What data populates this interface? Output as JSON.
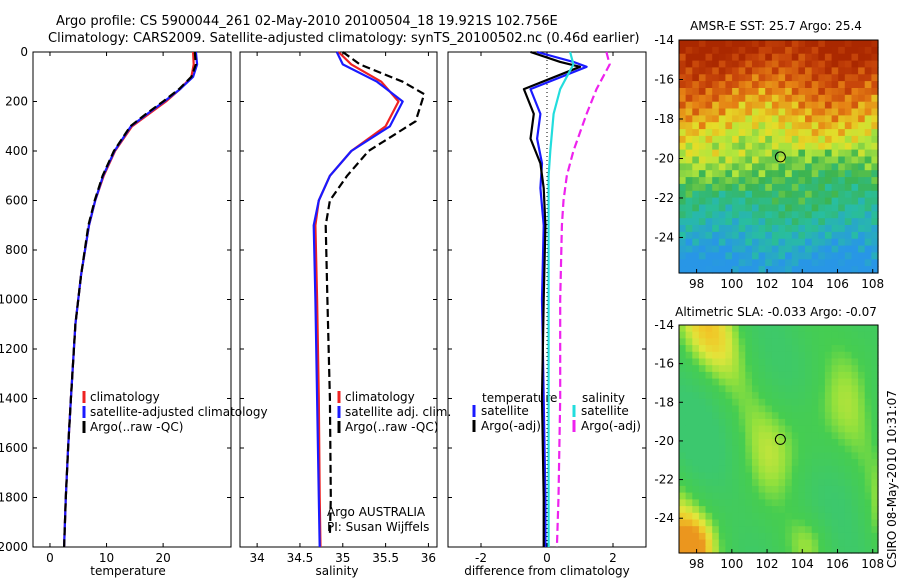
{
  "header": {
    "line1": "Argo profile: CS 5900044_261 02-May-2010 20100504_18 19.921S 102.756E",
    "line2": "Climatology: CARS2009. Satellite-adjusted climatology: synTS_20100502.nc (0.46d earlier)"
  },
  "side_note": "CSIRO 08-May-2010 10:31:07",
  "colors": {
    "red": "#ee2222",
    "blue": "#1a1aff",
    "black": "#000000",
    "cyan": "#22dddd",
    "magenta": "#ee22ee"
  },
  "chart_data": [
    {
      "id": "temperature",
      "type": "line",
      "xlabel": "temperature",
      "ylabel": "",
      "xlim": [
        -3,
        32
      ],
      "ylim": [
        2000,
        0
      ],
      "y_inverted": true,
      "xticks": [
        0,
        10,
        20
      ],
      "yticks": [
        0,
        200,
        400,
        600,
        800,
        1000,
        1200,
        1400,
        1600,
        1800,
        2000
      ],
      "legend": {
        "position": "lower-left",
        "entries": [
          "climatology",
          "satellite-adjusted climatology",
          "Argo(..raw -QC)"
        ]
      },
      "series": [
        {
          "name": "climatology",
          "color": "red",
          "style": "solid",
          "x": [
            25.3,
            25.4,
            25.0,
            23.0,
            20.5,
            17.5,
            14.5,
            11.5,
            9.5,
            8.0,
            6.9,
            5.5,
            4.5,
            3.7,
            3.2,
            2.8,
            2.5
          ],
          "y": [
            0,
            50,
            100,
            150,
            200,
            250,
            300,
            400,
            500,
            600,
            700,
            900,
            1100,
            1400,
            1600,
            1800,
            2000
          ]
        },
        {
          "name": "satellite-adjusted climatology",
          "color": "blue",
          "style": "solid",
          "x": [
            25.8,
            26.0,
            25.3,
            23.0,
            20.2,
            17.2,
            14.3,
            11.4,
            9.4,
            8.0,
            6.9,
            5.5,
            4.5,
            3.7,
            3.2,
            2.8,
            2.5
          ],
          "y": [
            0,
            50,
            100,
            150,
            200,
            250,
            300,
            400,
            500,
            600,
            700,
            900,
            1100,
            1400,
            1600,
            1800,
            2000
          ]
        },
        {
          "name": "Argo(..raw -QC)",
          "color": "black",
          "style": "dashed",
          "x": [
            25.6,
            25.8,
            25.0,
            22.8,
            20.0,
            17.0,
            14.2,
            11.3,
            9.3,
            7.9,
            6.8,
            5.5,
            4.5,
            3.7,
            3.2,
            2.8,
            2.5
          ],
          "y": [
            0,
            50,
            100,
            150,
            200,
            250,
            300,
            400,
            500,
            600,
            700,
            900,
            1100,
            1400,
            1600,
            1800,
            2000
          ]
        }
      ]
    },
    {
      "id": "salinity",
      "type": "line",
      "xlabel": "salinity",
      "xlim": [
        33.8,
        36.1
      ],
      "ylim": [
        2000,
        0
      ],
      "y_inverted": true,
      "xticks": [
        34,
        34.5,
        35,
        35.5,
        36
      ],
      "legend": {
        "position": "lower-right",
        "entries": [
          "climatology",
          "satellite adj. clim.",
          "Argo(..raw -QC)"
        ]
      },
      "annotations": [
        "Argo AUSTRALIA",
        "PI: Susan Wijffels"
      ],
      "series": [
        {
          "name": "climatology",
          "color": "red",
          "style": "solid",
          "x": [
            34.95,
            35.1,
            35.45,
            35.65,
            35.5,
            35.1,
            34.85,
            34.72,
            34.68,
            34.7,
            34.72,
            34.73,
            34.74
          ],
          "y": [
            0,
            50,
            120,
            200,
            300,
            400,
            500,
            600,
            700,
            1000,
            1400,
            1800,
            2000
          ]
        },
        {
          "name": "satellite adj. clim.",
          "color": "blue",
          "style": "solid",
          "x": [
            34.93,
            35.0,
            35.4,
            35.7,
            35.55,
            35.1,
            34.85,
            34.72,
            34.66,
            34.68,
            34.7,
            34.72,
            34.73
          ],
          "y": [
            0,
            50,
            120,
            200,
            300,
            400,
            500,
            600,
            700,
            1000,
            1400,
            1800,
            2000
          ]
        },
        {
          "name": "Argo(..raw -QC)",
          "color": "black",
          "style": "dashed",
          "x": [
            35.0,
            35.2,
            35.7,
            35.95,
            35.85,
            35.3,
            35.05,
            34.85,
            34.8,
            34.82,
            34.85,
            34.86,
            34.85
          ],
          "y": [
            0,
            50,
            120,
            170,
            280,
            400,
            500,
            600,
            700,
            1000,
            1400,
            1800,
            1950
          ]
        }
      ]
    },
    {
      "id": "difference",
      "type": "line",
      "xlabel": "difference from climatology",
      "xlim": [
        -3,
        3
      ],
      "ylim": [
        2000,
        0
      ],
      "y_inverted": true,
      "xticks": [
        -2,
        0,
        2
      ],
      "legend": {
        "position": "lower-center",
        "columns": [
          {
            "heading": "temperature",
            "entries": [
              "satellite",
              "Argo(-adj)"
            ]
          },
          {
            "heading": "salinity",
            "entries": [
              "satellite",
              "Argo(-adj)"
            ]
          }
        ]
      },
      "series": [
        {
          "name": "temperature satellite",
          "color": "blue",
          "style": "solid",
          "x": [
            -0.3,
            0.8,
            1.2,
            -0.5,
            -0.2,
            -0.3,
            -0.15,
            -0.2,
            -0.1,
            -0.15,
            -0.1,
            -0.05,
            -0.05
          ],
          "y": [
            0,
            40,
            60,
            150,
            250,
            350,
            450,
            550,
            700,
            1000,
            1400,
            1800,
            2000
          ]
        },
        {
          "name": "temperature Argo(-adj)",
          "color": "black",
          "style": "solid",
          "x": [
            -0.5,
            0.4,
            1.0,
            -0.7,
            -0.4,
            -0.5,
            -0.2,
            -0.1,
            -0.05,
            -0.1,
            -0.15,
            -0.1,
            -0.1
          ],
          "y": [
            0,
            40,
            60,
            150,
            250,
            350,
            450,
            550,
            700,
            1000,
            1400,
            1800,
            2000
          ]
        },
        {
          "name": "salinity satellite",
          "color": "cyan",
          "style": "solid",
          "x": [
            0.7,
            0.8,
            0.4,
            0.2,
            0.1,
            0.05,
            0.05,
            0.05,
            0.05,
            0.05,
            0.05,
            0.05
          ],
          "y": [
            0,
            50,
            150,
            250,
            400,
            500,
            600,
            700,
            1000,
            1400,
            1800,
            2000
          ]
        },
        {
          "name": "salinity Argo(-adj)",
          "color": "magenta",
          "style": "dashed",
          "x": [
            1.8,
            1.9,
            1.5,
            1.2,
            0.8,
            0.6,
            0.5,
            0.45,
            0.4,
            0.4,
            0.35,
            0.3
          ],
          "y": [
            0,
            50,
            150,
            250,
            400,
            500,
            600,
            700,
            1000,
            1400,
            1800,
            2000
          ]
        }
      ]
    },
    {
      "id": "sst_map",
      "type": "heatmap",
      "title": "AMSR-E SST: 25.7 Argo: 25.4",
      "xlim": [
        97,
        108.3
      ],
      "ylim": [
        -25.8,
        -14
      ],
      "xticks": [
        98,
        100,
        102,
        104,
        106,
        108
      ],
      "yticks": [
        -14,
        -16,
        -18,
        -20,
        -22,
        -24
      ],
      "marker": {
        "lon": 102.756,
        "lat": -19.921
      }
    },
    {
      "id": "sla_map",
      "type": "heatmap",
      "title": "Altimetric SLA: -0.033 Argo: -0.07",
      "xlim": [
        97,
        108.3
      ],
      "ylim": [
        -25.8,
        -14
      ],
      "xticks": [
        98,
        100,
        102,
        104,
        106,
        108
      ],
      "yticks": [
        -14,
        -16,
        -18,
        -20,
        -22,
        -24
      ],
      "marker": {
        "lon": 102.756,
        "lat": -19.921
      }
    }
  ]
}
